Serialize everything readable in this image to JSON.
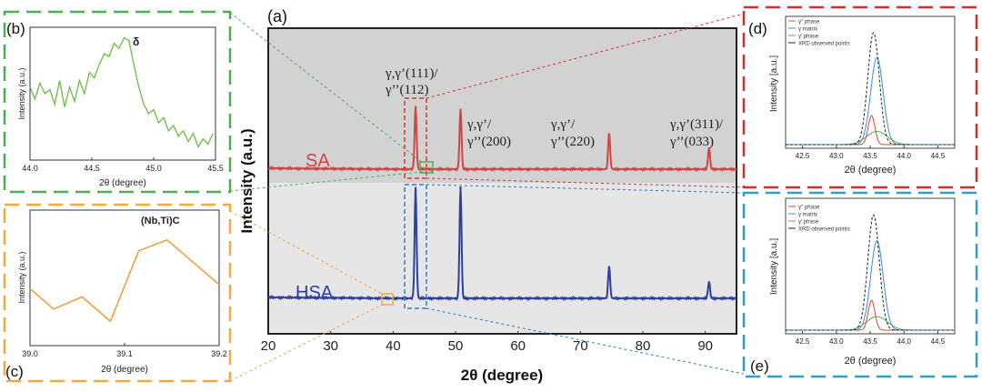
{
  "chart_data": [
    {
      "panel": "(a)",
      "type": "line",
      "xlabel": "2θ (degree)",
      "ylabel": "Intensity (a.u.)",
      "xlim": [
        20,
        95
      ],
      "xticks": [
        "20",
        "30",
        "40",
        "50",
        "60",
        "70",
        "80",
        "90"
      ],
      "series": [
        {
          "name": "SA",
          "color": "#d04545",
          "peaks": [
            [
              43.6,
              1.0
            ],
            [
              50.8,
              0.95
            ],
            [
              74.6,
              0.57
            ],
            [
              90.6,
              0.34
            ]
          ]
        },
        {
          "name": "HSA",
          "color": "#2e3fa0",
          "peaks": [
            [
              43.6,
              1.0
            ],
            [
              50.8,
              1.0
            ],
            [
              74.6,
              0.29
            ],
            [
              90.6,
              0.15
            ]
          ]
        }
      ],
      "annotations": [
        "γ,γ’(111)/",
        "γ’’(112)",
        "γ,γ’/",
        "γ’’(200)",
        "γ,γ’/",
        "γ’’(220)",
        "γ,γ’(311)/",
        "γ’’(033)"
      ]
    },
    {
      "panel": "(b)",
      "type": "line",
      "xlabel": "2θ (degree)",
      "ylabel": "Intensity (a.u.)",
      "xlim": [
        44.0,
        45.5
      ],
      "xticks": [
        "44.0",
        "44.5",
        "45.0",
        "45.5"
      ],
      "color": "#6abd45",
      "annotation": "δ",
      "x": [
        44.0,
        44.04,
        44.08,
        44.12,
        44.16,
        44.2,
        44.24,
        44.28,
        44.32,
        44.36,
        44.4,
        44.44,
        44.48,
        44.52,
        44.56,
        44.6,
        44.64,
        44.68,
        44.72,
        44.76,
        44.8,
        44.84,
        44.88,
        44.92,
        44.96,
        45.0,
        45.04,
        45.08,
        45.12,
        45.16,
        45.2,
        45.24,
        45.28,
        45.32,
        45.36,
        45.4,
        45.44,
        45.48
      ],
      "y": [
        0.55,
        0.46,
        0.58,
        0.5,
        0.53,
        0.42,
        0.6,
        0.4,
        0.55,
        0.44,
        0.6,
        0.5,
        0.66,
        0.62,
        0.72,
        0.8,
        0.78,
        0.88,
        0.84,
        0.92,
        0.9,
        0.72,
        0.55,
        0.42,
        0.35,
        0.38,
        0.28,
        0.32,
        0.22,
        0.26,
        0.18,
        0.22,
        0.14,
        0.2,
        0.1,
        0.16,
        0.12,
        0.2
      ]
    },
    {
      "panel": "(c)",
      "type": "line",
      "xlabel": "2θ (degree)",
      "ylabel": "Intensity (a.u.)",
      "xlim": [
        39.0,
        39.2
      ],
      "xticks": [
        "39.0",
        "39.1",
        "39.2"
      ],
      "color": "#f09a3e",
      "annotation": "(Nb,Ti)C",
      "x": [
        39.0,
        39.025,
        39.055,
        39.085,
        39.115,
        39.145,
        39.2
      ],
      "y": [
        0.42,
        0.27,
        0.36,
        0.18,
        0.7,
        0.78,
        0.45
      ]
    },
    {
      "panel": "(d)",
      "type": "line",
      "xlabel": "2θ (degree)",
      "ylabel": "Intensity [a.u.]",
      "xlim": [
        42.25,
        44.75
      ],
      "xticks": [
        "42.5",
        "43.0",
        "43.5",
        "44.0",
        "44.5"
      ],
      "legend": [
        "γ'' phase",
        "γ matrix",
        "γ' phase",
        "XRD observed points"
      ]
    },
    {
      "panel": "(e)",
      "type": "line",
      "xlabel": "2θ (degree)",
      "ylabel": "Intensity [a.u.]",
      "xlim": [
        42.25,
        44.75
      ],
      "xticks": [
        "42.5",
        "43.0",
        "43.5",
        "44.0",
        "44.5"
      ],
      "legend": [
        "γ'' phase",
        "γ matrix",
        "γ' phase",
        "XRD observed points"
      ]
    }
  ]
}
